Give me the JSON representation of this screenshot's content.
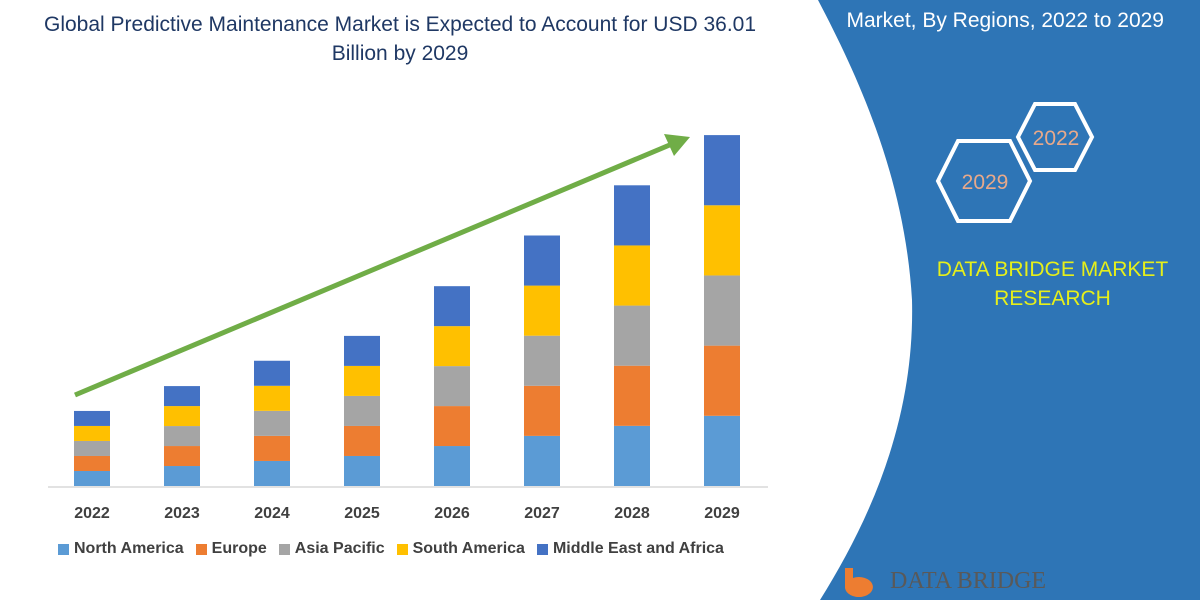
{
  "title": "Global Predictive Maintenance Market is Expected to Account for USD 36.01 Billion by 2029",
  "side_panel": {
    "title": "Market, By Regions, 2022 to 2029",
    "hex_labels": [
      "2022",
      "2029"
    ],
    "brand": "DATA BRIDGE MARKET RESEARCH",
    "logo_text": "DATA BRIDGE"
  },
  "colors": {
    "panel": "#2e75b6",
    "arrow": "#70ad47",
    "hex_text": "#e8a98a",
    "brand": "#e6ef1a"
  },
  "chart_data": {
    "type": "bar",
    "stacked": true,
    "categories": [
      "2022",
      "2023",
      "2024",
      "2025",
      "2026",
      "2027",
      "2028",
      "2029"
    ],
    "series": [
      {
        "name": "North America",
        "color": "#5b9bd5",
        "values": [
          1.54,
          2.05,
          2.57,
          3.08,
          4.1,
          5.14,
          6.17,
          7.2
        ]
      },
      {
        "name": "Europe",
        "color": "#ed7d31",
        "values": [
          1.54,
          2.05,
          2.57,
          3.08,
          4.1,
          5.14,
          6.17,
          7.2
        ]
      },
      {
        "name": "Asia Pacific",
        "color": "#a5a5a5",
        "values": [
          1.54,
          2.05,
          2.57,
          3.08,
          4.1,
          5.14,
          6.17,
          7.2
        ]
      },
      {
        "name": "South America",
        "color": "#ffc000",
        "values": [
          1.54,
          2.05,
          2.57,
          3.08,
          4.1,
          5.14,
          6.17,
          7.2
        ]
      },
      {
        "name": "Middle East and Africa",
        "color": "#4472c4",
        "values": [
          1.54,
          2.05,
          2.57,
          3.08,
          4.1,
          5.14,
          6.17,
          7.2
        ]
      }
    ],
    "ylim": [
      0,
      36.01
    ],
    "grid": false,
    "legend": "bottom",
    "trend_arrow": true
  }
}
